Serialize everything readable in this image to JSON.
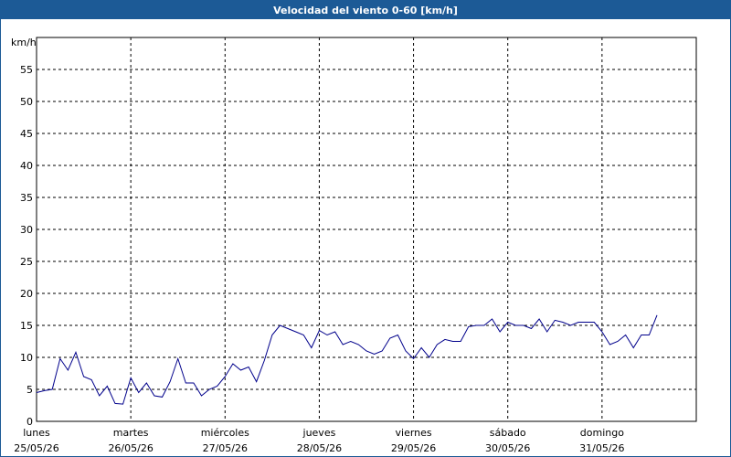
{
  "chart_data": {
    "type": "line",
    "title": "Velocidad del viento 0-60 [km/h]",
    "y_label": "km/h",
    "x": [
      0,
      2,
      4,
      6,
      8,
      10,
      12,
      14,
      16,
      18,
      20,
      22,
      24,
      26,
      28,
      30,
      32,
      34,
      36,
      38,
      40,
      42,
      44,
      46,
      48,
      50,
      52,
      54,
      56,
      58,
      60,
      62,
      64,
      66,
      68,
      70,
      72,
      74,
      76,
      78,
      80,
      82,
      84,
      86,
      88,
      90,
      92,
      94,
      96,
      98,
      100,
      102,
      104,
      106,
      108,
      110,
      112,
      114,
      116,
      118,
      120,
      122,
      124,
      126,
      128,
      130,
      132,
      134,
      136,
      138,
      140,
      142,
      144,
      146,
      148,
      150,
      152,
      154,
      156,
      158
    ],
    "series": [
      {
        "name": "Velocidad del viento",
        "color": "#00008b",
        "values": [
          4.5,
          4.8,
          5,
          9.8,
          8,
          10.8,
          7,
          6.5,
          4,
          5.5,
          2.8,
          2.7,
          6.8,
          4.5,
          6,
          4,
          3.8,
          6.2,
          9.8,
          6,
          6,
          4,
          5,
          5.5,
          7,
          9,
          8,
          8.5,
          6.2,
          9.5,
          13.5,
          15,
          14.5,
          14,
          13.5,
          11.5,
          14.2,
          13.5,
          14,
          12,
          12.5,
          12,
          11,
          10.5,
          11,
          13,
          13.5,
          11,
          9.8,
          11.5,
          10,
          12,
          12.8,
          12.5,
          12.5,
          14.8,
          15,
          15,
          16,
          14,
          15.5,
          15,
          15,
          14.5,
          16,
          14,
          15.8,
          15.5,
          15,
          15.5,
          15.5,
          15.5,
          14,
          12,
          12.5,
          13.5,
          11.5,
          13.5,
          13.5,
          16.6
        ]
      }
    ],
    "xlim": [
      0,
      168
    ],
    "xticks": [
      {
        "value": 0,
        "label": "lunes",
        "date": "25/05/26"
      },
      {
        "value": 24,
        "label": "martes",
        "date": "26/05/26"
      },
      {
        "value": 48,
        "label": "miércoles",
        "date": "27/05/26"
      },
      {
        "value": 72,
        "label": "jueves",
        "date": "28/05/26"
      },
      {
        "value": 96,
        "label": "viernes",
        "date": "29/05/26"
      },
      {
        "value": 120,
        "label": "sábado",
        "date": "30/05/26"
      },
      {
        "value": 144,
        "label": "domingo",
        "date": "31/05/26"
      }
    ],
    "ylim": [
      0,
      60
    ],
    "yticks": [
      0,
      5,
      10,
      15,
      20,
      25,
      30,
      35,
      40,
      45,
      50,
      55
    ],
    "grid": true
  }
}
